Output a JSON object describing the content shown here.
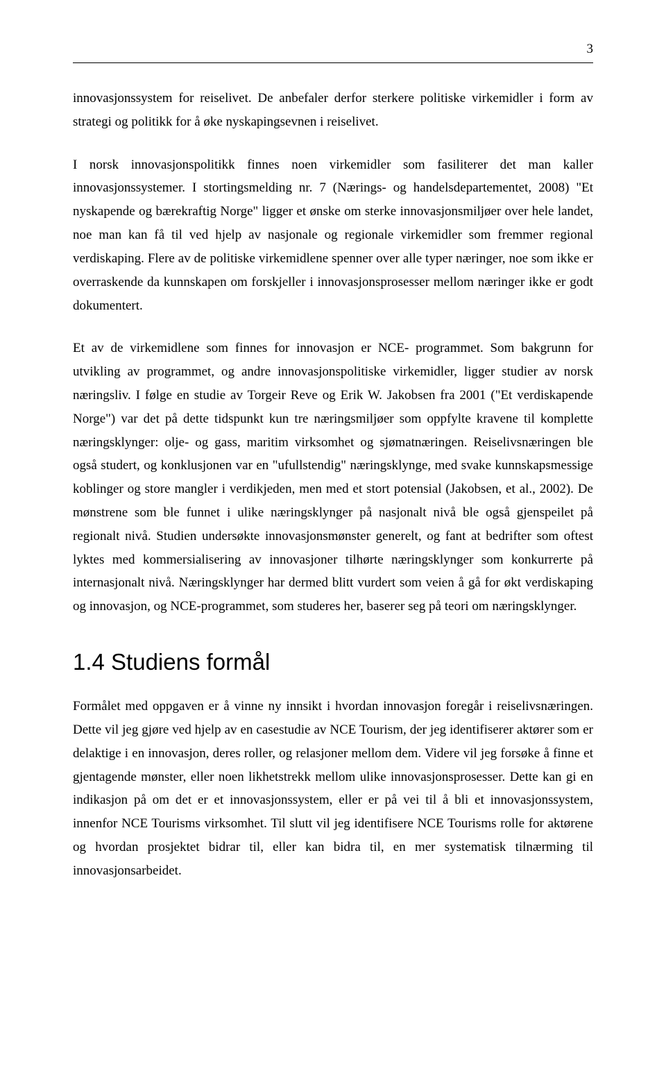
{
  "page_number": "3",
  "paragraphs": {
    "p1": "innovasjonssystem for reiselivet. De anbefaler derfor sterkere politiske virkemidler i form av strategi og politikk for å øke nyskapingsevnen i reiselivet.",
    "p2": "I norsk innovasjonspolitikk finnes noen virkemidler som fasiliterer det man kaller innovasjonssystemer. I stortingsmelding nr. 7 (Nærings- og handelsdepartementet, 2008) \"Et nyskapende og bærekraftig Norge\" ligger et ønske om sterke innovasjonsmiljøer over hele landet, noe man kan få til ved hjelp av nasjonale og regionale virkemidler som fremmer regional verdiskaping. Flere av de politiske virkemidlene spenner over alle typer næringer, noe som ikke er overraskende da kunnskapen om forskjeller i innovasjonsprosesser mellom næringer ikke er godt dokumentert.",
    "p3": "Et av de virkemidlene som finnes for innovasjon er NCE- programmet. Som bakgrunn for utvikling av programmet, og andre innovasjonspolitiske virkemidler, ligger studier av norsk næringsliv. I følge en studie av Torgeir Reve og Erik W. Jakobsen fra 2001 (\"Et verdiskapende Norge\") var det på dette tidspunkt kun tre næringsmiljøer som oppfylte kravene til komplette næringsklynger: olje- og gass, maritim virksomhet og sjømatnæringen. Reiselivsnæringen ble også studert, og konklusjonen var en \"ufullstendig\" næringsklynge, med svake kunnskapsmessige koblinger og store mangler i verdikjeden, men med et stort potensial (Jakobsen, et al., 2002). De mønstrene som ble funnet i ulike næringsklynger på nasjonalt nivå ble også gjenspeilet på regionalt nivå. Studien undersøkte innovasjonsmønster generelt, og fant at bedrifter som oftest lyktes med kommersialisering av innovasjoner tilhørte næringsklynger som konkurrerte på internasjonalt nivå. Næringsklynger har dermed blitt vurdert som veien å gå for økt verdiskaping og innovasjon, og NCE-programmet, som studeres her, baserer seg på teori om næringsklynger.",
    "p4": "Formålet med oppgaven er å vinne ny innsikt i hvordan innovasjon foregår i reiselivsnæringen. Dette vil jeg gjøre ved hjelp av en casestudie av NCE Tourism, der jeg identifiserer aktører som er delaktige i en innovasjon, deres roller, og relasjoner mellom dem. Videre vil jeg forsøke å finne et gjentagende mønster, eller noen likhetstrekk mellom ulike innovasjonsprosesser. Dette kan gi en indikasjon på om det er et innovasjonssystem, eller er på vei til å bli et innovasjonssystem, innenfor NCE Tourisms virksomhet. Til slutt vil jeg identifisere NCE Tourisms rolle for aktørene og hvordan prosjektet bidrar til, eller kan bidra til, en mer systematisk tilnærming til innovasjonsarbeidet."
  },
  "section_heading": "1.4 Studiens formål"
}
